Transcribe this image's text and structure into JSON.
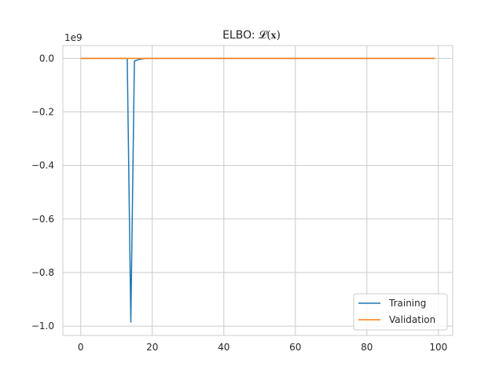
{
  "chart_data": {
    "type": "line",
    "title": "ELBO: ",
    "title_math": "𝓛(𝐱)",
    "xlabel": "",
    "ylabel": "",
    "offset_label": "1e9",
    "xlim": [
      -5,
      104
    ],
    "ylim": [
      -1.035,
      0.048
    ],
    "x_ticks": [
      0,
      20,
      40,
      60,
      80,
      100
    ],
    "x_tick_labels": [
      "0",
      "20",
      "40",
      "60",
      "80",
      "100"
    ],
    "y_ticks": [
      0.0,
      -0.2,
      -0.4,
      -0.6,
      -0.8,
      -1.0
    ],
    "y_tick_labels": [
      "0.0",
      "−0.2",
      "−0.4",
      "−0.6",
      "−0.8",
      "−1.0"
    ],
    "grid": true,
    "legend_position": "lower-right",
    "series": [
      {
        "name": "Training",
        "color": "#1f77b4",
        "x": [
          0,
          5,
          10,
          12,
          13,
          14,
          15,
          16,
          17,
          18,
          20,
          40,
          60,
          80,
          99
        ],
        "y": [
          0,
          0,
          0,
          0,
          0,
          -0.985,
          -0.01,
          -0.005,
          -0.002,
          0,
          0,
          0,
          0,
          0,
          0
        ]
      },
      {
        "name": "Validation",
        "color": "#ff7f0e",
        "x": [
          0,
          10,
          20,
          40,
          60,
          80,
          99
        ],
        "y": [
          0,
          0,
          0,
          0,
          0,
          0,
          0
        ]
      }
    ]
  }
}
